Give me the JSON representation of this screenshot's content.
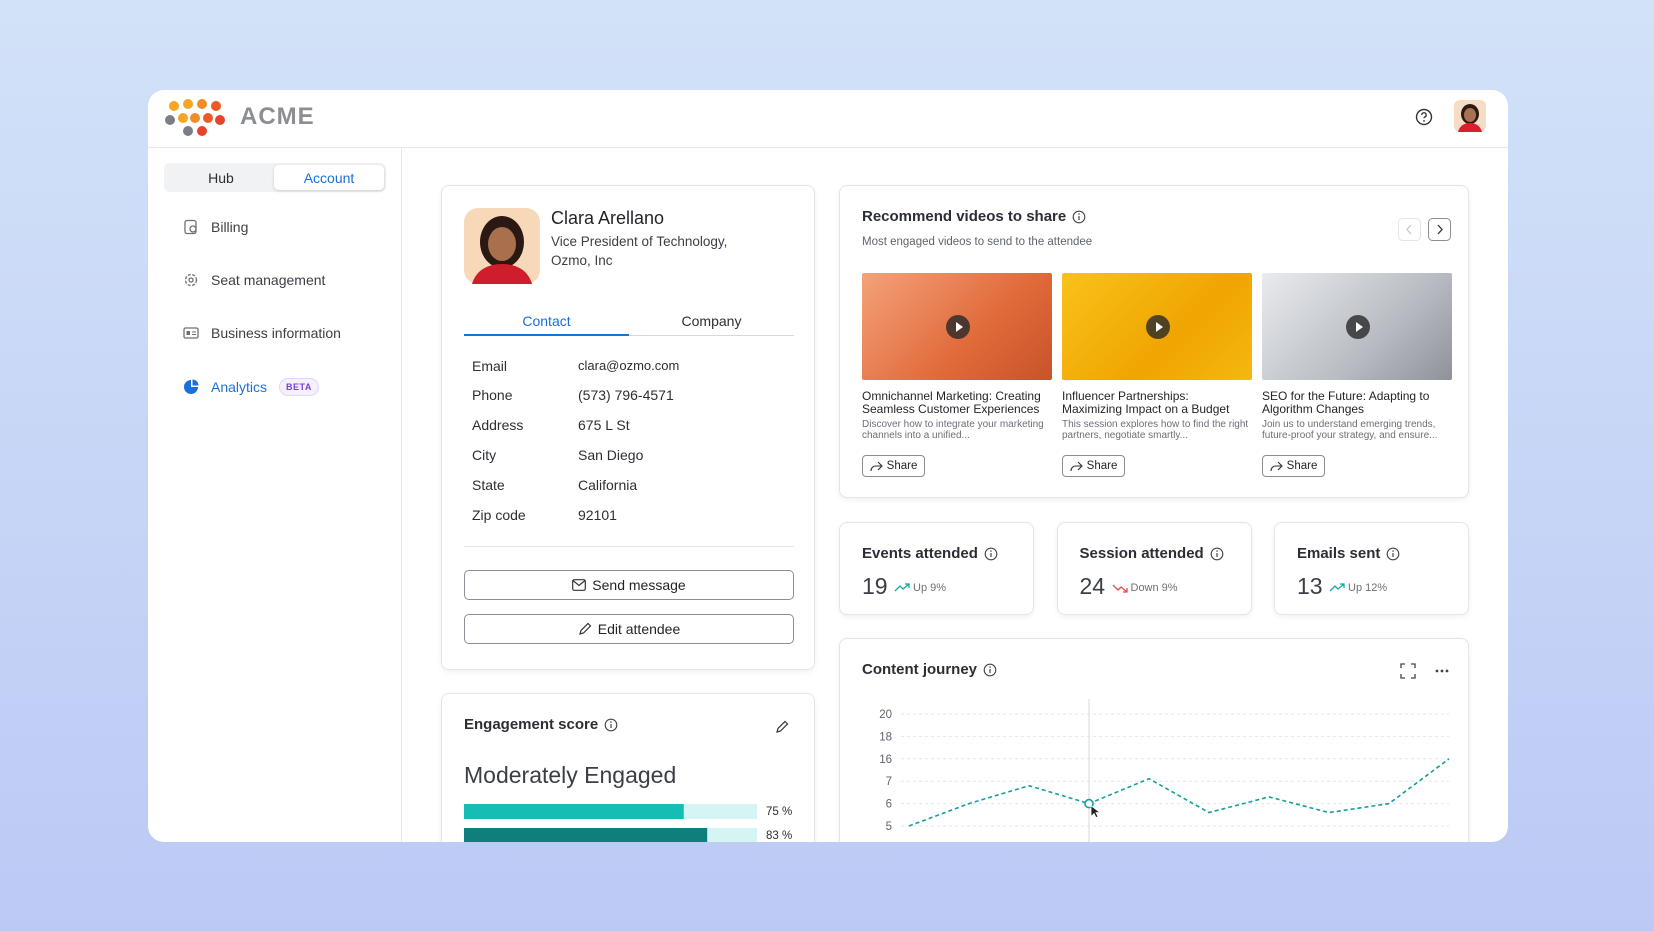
{
  "header": {
    "brand": "ACME"
  },
  "sidebar": {
    "tabs": [
      "Hub",
      "Account"
    ],
    "nav": [
      "Billing",
      "Seat management",
      "Business information",
      "Analytics"
    ],
    "badge": "BETA"
  },
  "contact": {
    "name": "Clara Arellano",
    "role": "Vice President of Technology, Ozmo, Inc",
    "tabs": [
      "Contact",
      "Company"
    ],
    "rows": [
      [
        "Email",
        "clara@ozmo.com"
      ],
      [
        "Phone",
        "(573) 796-4571"
      ],
      [
        "Address",
        "675 L St"
      ],
      [
        "City",
        "San Diego"
      ],
      [
        "State",
        "California"
      ],
      [
        "Zip code",
        "92101"
      ]
    ],
    "buttons": [
      "Send message",
      "Edit attendee"
    ]
  },
  "videos": {
    "title": "Recommend videos to share",
    "subtitle": "Most engaged videos to send to the attendee",
    "items": [
      {
        "title": "Omnichannel Marketing: Creating Seamless Customer Experiences",
        "desc": "Discover how to integrate your marketing channels into a unified...",
        "share": "Share"
      },
      {
        "title": "Influencer Partnerships: Maximizing Impact on a Budget",
        "desc": "This session explores how to find the right partners, negotiate smartly...",
        "share": "Share"
      },
      {
        "title": "SEO for the Future: Adapting to Algorithm Changes",
        "desc": "Join us to understand emerging trends, future-proof your strategy, and ensure...",
        "share": "Share"
      }
    ]
  },
  "stats": [
    {
      "label": "Events attended",
      "value": "19",
      "trend": "Up 9%",
      "color": "#14a8a0"
    },
    {
      "label": "Session attended",
      "value": "24",
      "trend": "Down 9%",
      "color": "#e5484d"
    },
    {
      "label": "Emails sent",
      "value": "13",
      "trend": "Up 12%",
      "color": "#14a8a0"
    }
  ],
  "chart_data": [
    {
      "type": "bar",
      "title": "Engagement score",
      "subtitle": "Moderately Engaged",
      "values": [
        75,
        83
      ],
      "value_labels": [
        "75 %",
        "83 %"
      ],
      "xlim": [
        0,
        100
      ],
      "colors": [
        "#16bdb4",
        "#0f7f7d"
      ],
      "track_color": "#d4f5f4"
    },
    {
      "type": "line",
      "title": "Content journey",
      "values": [
        5,
        6,
        6.8,
        6,
        8,
        5.6,
        6.3,
        5.6,
        6,
        16
      ],
      "yticks": [
        20,
        18,
        16,
        7,
        6,
        5
      ],
      "ylim": [
        5,
        20
      ],
      "color": "#159e9c",
      "grid": true
    }
  ]
}
